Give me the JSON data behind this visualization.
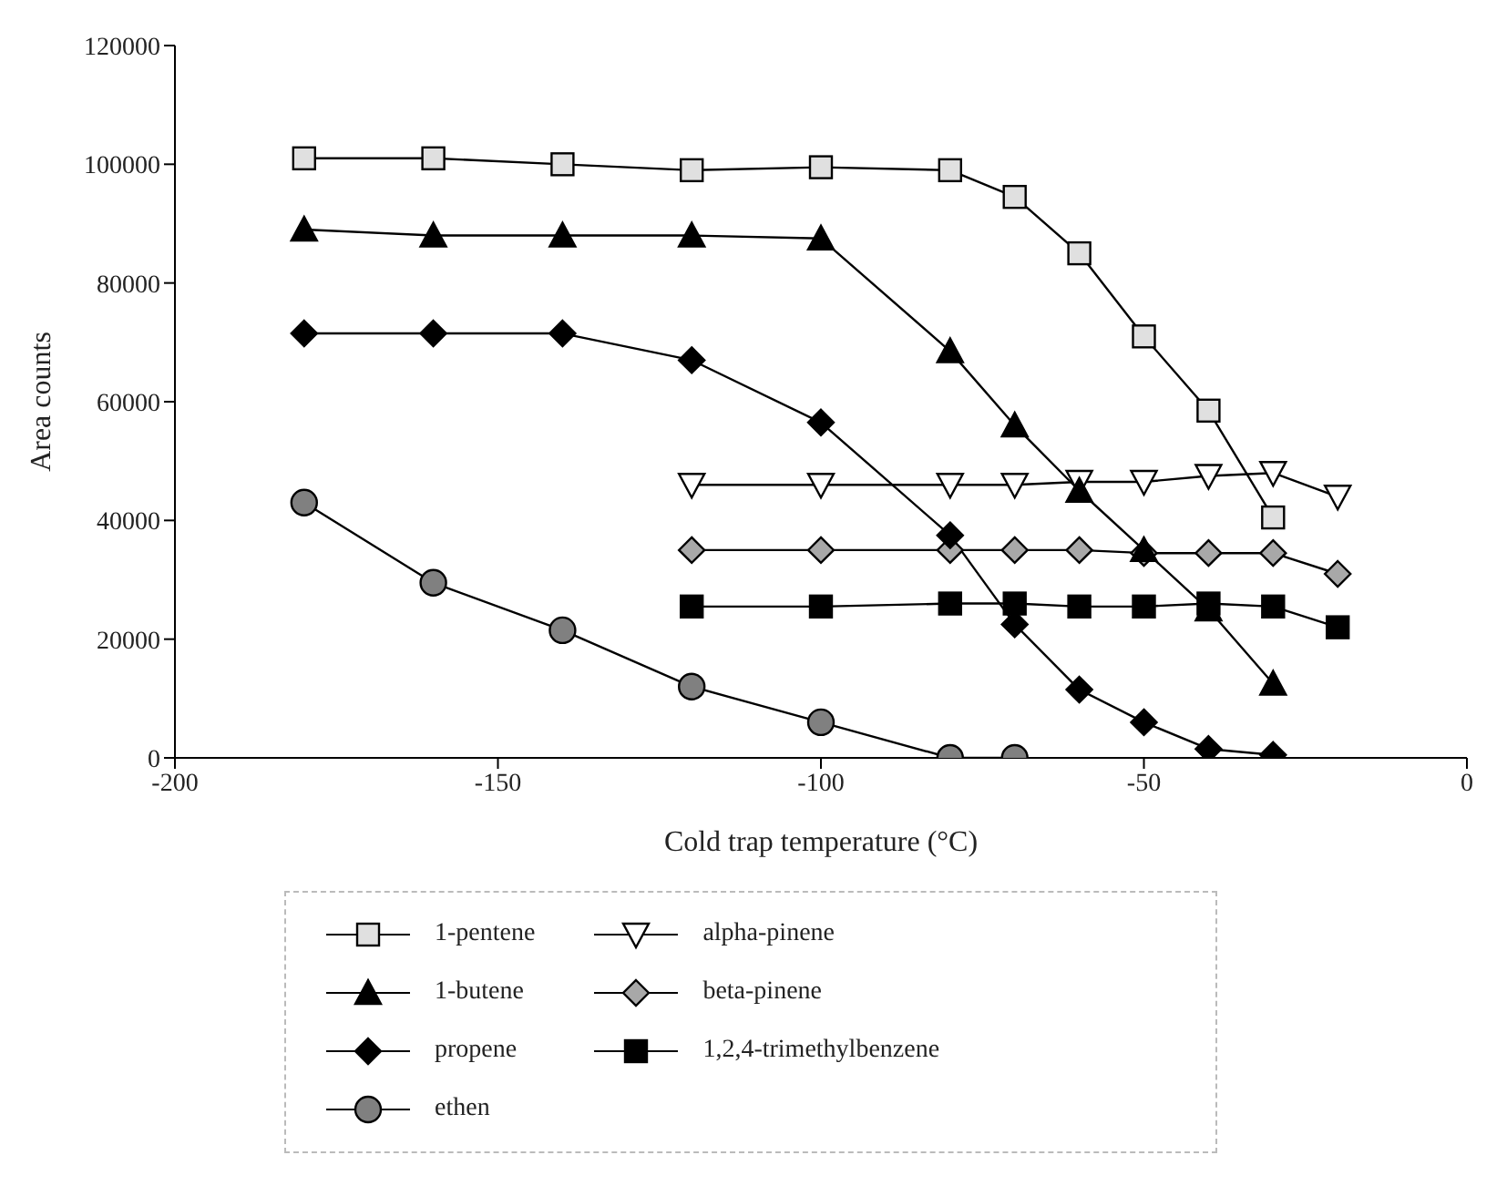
{
  "chart_data": {
    "type": "line",
    "xlabel": "Cold trap temperature (°C)",
    "ylabel": "Area counts",
    "x": [
      -180,
      -160,
      -140,
      -120,
      -100,
      -80,
      -70,
      -60,
      -50,
      -40,
      -30,
      -20
    ],
    "series": [
      {
        "name": "1-pentene",
        "color": "#e0e0e0",
        "marker": "square",
        "values": [
          101000,
          101000,
          100000,
          99000,
          99500,
          99000,
          94500,
          85000,
          71000,
          58500,
          40500,
          null
        ]
      },
      {
        "name": "1-butene",
        "color": "#000000",
        "marker": "triangle",
        "values": [
          89000,
          88000,
          88000,
          88000,
          87500,
          68500,
          56000,
          45000,
          35000,
          25000,
          12500,
          null
        ]
      },
      {
        "name": "propene",
        "color": "#000000",
        "marker": "diamond",
        "values": [
          71500,
          71500,
          71500,
          67000,
          56500,
          37500,
          22500,
          11500,
          6000,
          1500,
          500,
          null
        ]
      },
      {
        "name": "ethen",
        "color": "#808080",
        "marker": "circle",
        "values": [
          43000,
          29500,
          21500,
          12000,
          6000,
          0,
          0,
          null,
          null,
          null,
          null,
          null
        ]
      },
      {
        "name": "alpha-pinene",
        "color": "#ffffff",
        "marker": "triangle-down",
        "values": [
          null,
          null,
          null,
          46000,
          46000,
          46000,
          46000,
          46500,
          46500,
          47500,
          48000,
          44000
        ]
      },
      {
        "name": "beta-pinene",
        "color": "#a8a8a8",
        "marker": "diamond",
        "values": [
          null,
          null,
          null,
          35000,
          35000,
          35000,
          35000,
          35000,
          34500,
          34500,
          34500,
          31000
        ]
      },
      {
        "name": "1,2,4-trimethylbenzene",
        "color": "#000000",
        "marker": "square",
        "values": [
          null,
          null,
          null,
          25500,
          25500,
          26000,
          26000,
          25500,
          25500,
          26000,
          25500,
          22000
        ]
      }
    ],
    "xlim": [
      -200,
      0
    ],
    "xticks": [
      -200,
      -150,
      -100,
      -50,
      0
    ],
    "ylim": [
      0,
      120000
    ],
    "yticks": [
      0,
      20000,
      40000,
      60000,
      80000,
      100000,
      120000
    ],
    "grid": false,
    "legend": "bottom",
    "line_style": "solid"
  }
}
